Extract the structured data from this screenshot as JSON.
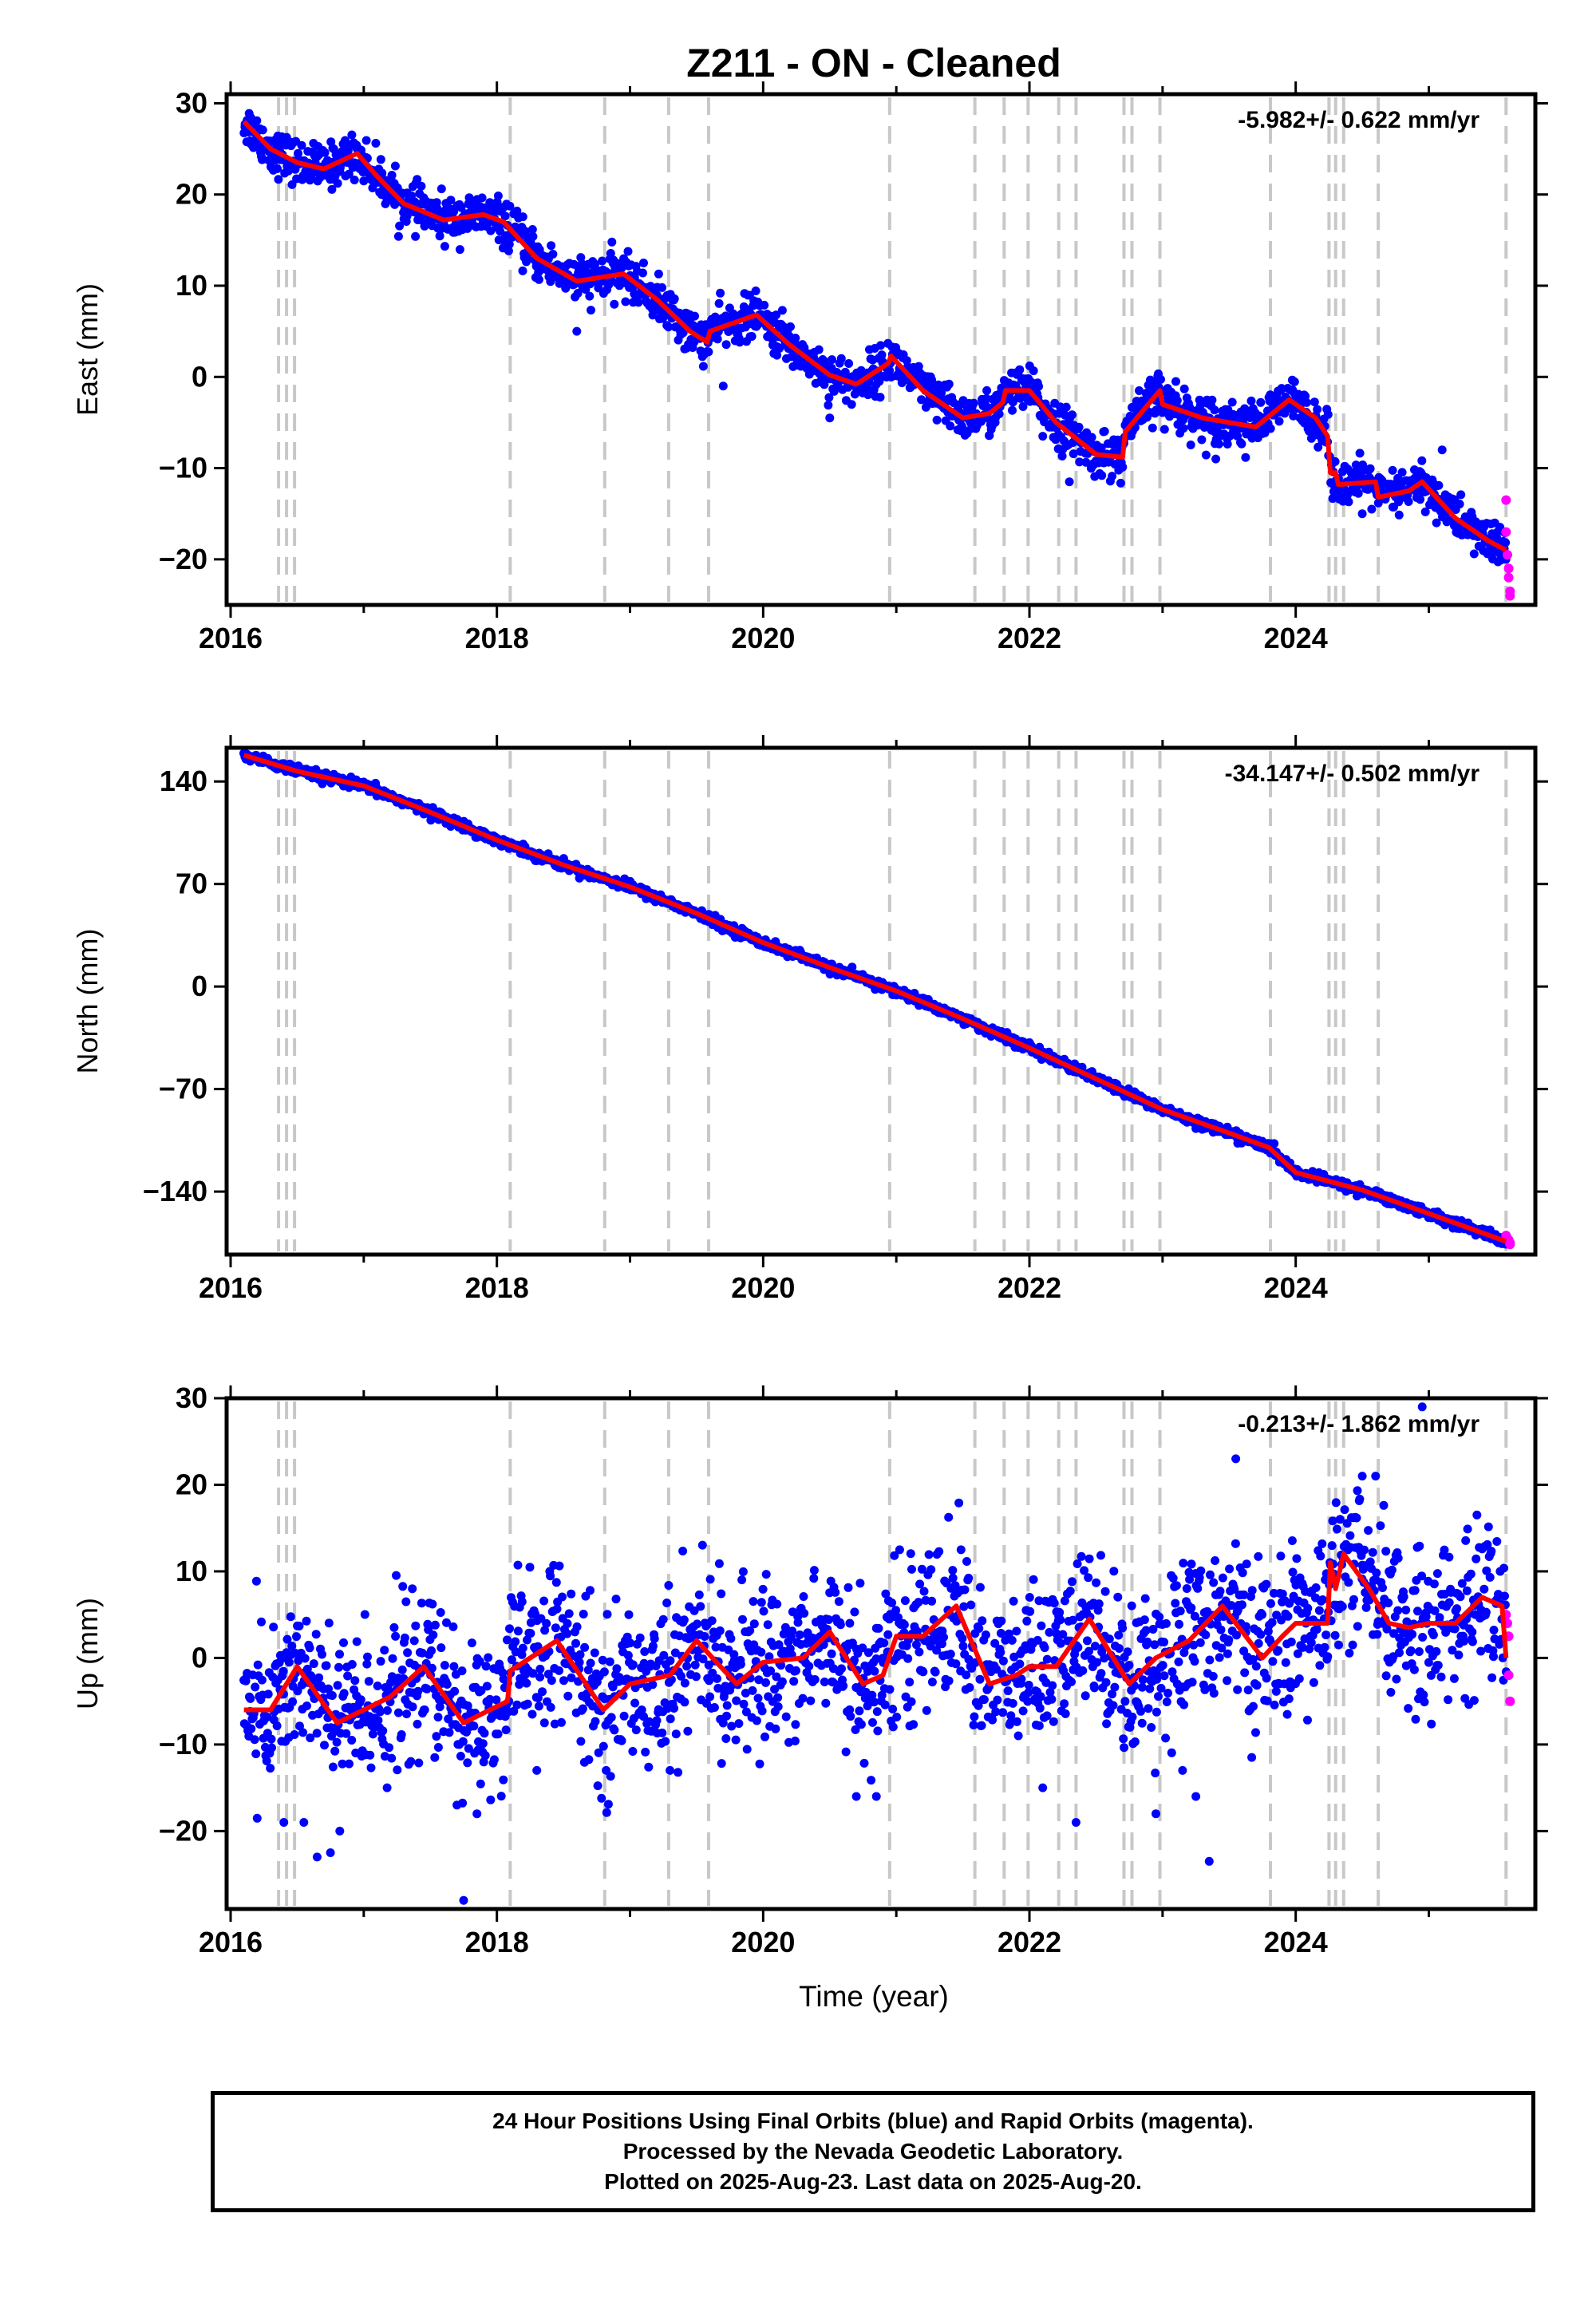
{
  "title": "Z211  - ON - Cleaned",
  "xlabel": "Time (year)",
  "footer": {
    "line1": "24 Hour Positions Using Final Orbits (blue) and Rapid Orbits (magenta).",
    "line2": "Processed by the Nevada Geodetic Laboratory.",
    "line3": "Plotted on 2025-Aug-23. Last data on 2025-Aug-20."
  },
  "colors": {
    "final": "#0000ff",
    "rapid": "#ff00ff",
    "model": "#ff0000",
    "events": "#c8c8c8"
  },
  "chart_data": [
    {
      "type": "scatter",
      "ylabel": "East (mm)",
      "rate": "-5.982+/- 0.622 mm/yr",
      "xlim": [
        2015.97,
        2025.8
      ],
      "ylim": [
        -25,
        31
      ],
      "yticks": [
        30,
        20,
        10,
        0,
        -10,
        -20
      ],
      "ytick_labels": [
        "30",
        "20",
        "10",
        "0",
        "−10",
        "−20"
      ],
      "xticks": [
        2016,
        2018,
        2020,
        2022,
        2024
      ],
      "xtick_labels": [
        "2016",
        "2018",
        "2020",
        "2022",
        "2024"
      ],
      "events": [
        2016.36,
        2016.42,
        2016.48,
        2018.1,
        2018.81,
        2019.29,
        2019.59,
        2020.95,
        2021.59,
        2021.81,
        2021.99,
        2022.22,
        2022.35,
        2022.71,
        2022.77,
        2022.98,
        2023.81,
        2024.25,
        2024.3,
        2024.36,
        2024.62,
        2025.58
      ],
      "model": [
        [
          2016.1,
          28
        ],
        [
          2016.3,
          25
        ],
        [
          2016.5,
          23.5
        ],
        [
          2016.7,
          22.8
        ],
        [
          2016.95,
          24.5
        ],
        [
          2017.1,
          22
        ],
        [
          2017.3,
          19
        ],
        [
          2017.6,
          17.2
        ],
        [
          2017.9,
          17.8
        ],
        [
          2018.05,
          17
        ],
        [
          2018.3,
          13
        ],
        [
          2018.6,
          10.5
        ],
        [
          2018.95,
          11.3
        ],
        [
          2019.2,
          8.5
        ],
        [
          2019.45,
          5
        ],
        [
          2019.58,
          3.8
        ],
        [
          2019.6,
          5
        ],
        [
          2019.95,
          6.8
        ],
        [
          2020.2,
          3.5
        ],
        [
          2020.5,
          0.2
        ],
        [
          2020.7,
          -0.8
        ],
        [
          2020.94,
          1.5
        ],
        [
          2020.96,
          2.3
        ],
        [
          2021.2,
          -1.5
        ],
        [
          2021.5,
          -4.5
        ],
        [
          2021.7,
          -4
        ],
        [
          2021.8,
          -2.8
        ],
        [
          2021.82,
          -1.5
        ],
        [
          2022.0,
          -1.5
        ],
        [
          2022.2,
          -5
        ],
        [
          2022.5,
          -8.5
        ],
        [
          2022.7,
          -8.8
        ],
        [
          2022.72,
          -6
        ],
        [
          2022.98,
          -1.5
        ],
        [
          2023.0,
          -3
        ],
        [
          2023.3,
          -4.5
        ],
        [
          2023.7,
          -5.5
        ],
        [
          2023.95,
          -2.5
        ],
        [
          2024.15,
          -4.5
        ],
        [
          2024.24,
          -6.5
        ],
        [
          2024.26,
          -10.5
        ],
        [
          2024.3,
          -10.5
        ],
        [
          2024.32,
          -11.8
        ],
        [
          2024.6,
          -11.5
        ],
        [
          2024.62,
          -13.2
        ],
        [
          2024.85,
          -12.5
        ],
        [
          2024.95,
          -11.5
        ],
        [
          2025.2,
          -15.5
        ],
        [
          2025.45,
          -18
        ],
        [
          2025.58,
          -19
        ]
      ],
      "rapid": [
        [
          2025.58,
          -13.5
        ],
        [
          2025.58,
          -17.0
        ],
        [
          2025.59,
          -19.5
        ],
        [
          2025.6,
          -21.0
        ],
        [
          2025.6,
          -22.0
        ],
        [
          2025.61,
          -23.5
        ],
        [
          2025.61,
          -24.0
        ]
      ],
      "rapid_start": 2025.58,
      "scatter": 1.2,
      "outliers": [
        [
          2018.6,
          5
        ],
        [
          2019.7,
          -1
        ],
        [
          2020.5,
          -4.5
        ],
        [
          2022.1,
          -6.5
        ],
        [
          2022.3,
          -11.5
        ],
        [
          2023.1,
          -0.5
        ],
        [
          2023.4,
          -9
        ],
        [
          2024.5,
          -15
        ],
        [
          2025.1,
          -8
        ]
      ]
    },
    {
      "type": "scatter",
      "ylabel": "North (mm)",
      "rate": "-34.147+/- 0.502 mm/yr",
      "xlim": [
        2015.97,
        2025.8
      ],
      "ylim": [
        -183,
        163
      ],
      "yticks": [
        140,
        70,
        0,
        -70,
        -140
      ],
      "ytick_labels": [
        "140",
        "70",
        "0",
        "−70",
        "−140"
      ],
      "xticks": [
        2016,
        2018,
        2020,
        2022,
        2024
      ],
      "xtick_labels": [
        "2016",
        "2018",
        "2020",
        "2022",
        "2024"
      ],
      "events": [
        2016.36,
        2016.42,
        2016.48,
        2018.1,
        2018.81,
        2019.29,
        2019.59,
        2020.95,
        2021.59,
        2021.81,
        2021.99,
        2022.22,
        2022.35,
        2022.71,
        2022.77,
        2022.98,
        2023.81,
        2024.25,
        2024.3,
        2024.36,
        2024.62,
        2025.58
      ],
      "model": [
        [
          2016.1,
          158
        ],
        [
          2016.5,
          147
        ],
        [
          2017.0,
          137
        ],
        [
          2017.5,
          119
        ],
        [
          2018.0,
          100
        ],
        [
          2018.5,
          83
        ],
        [
          2019.0,
          68
        ],
        [
          2019.5,
          50
        ],
        [
          2020.0,
          30
        ],
        [
          2020.5,
          13
        ],
        [
          2021.0,
          -3
        ],
        [
          2021.5,
          -22
        ],
        [
          2022.0,
          -42
        ],
        [
          2022.5,
          -63
        ],
        [
          2023.0,
          -84
        ],
        [
          2023.5,
          -100
        ],
        [
          2023.8,
          -110
        ],
        [
          2024.0,
          -127
        ],
        [
          2024.5,
          -139
        ],
        [
          2025.0,
          -155
        ],
        [
          2025.58,
          -174
        ]
      ],
      "rapid": [
        [
          2025.58,
          -170
        ],
        [
          2025.59,
          -172
        ],
        [
          2025.6,
          -173
        ],
        [
          2025.61,
          -175
        ],
        [
          2025.61,
          -176
        ]
      ],
      "rapid_start": 2025.58,
      "scatter": 1.6,
      "outliers": []
    },
    {
      "type": "scatter",
      "ylabel": "Up (mm)",
      "rate": "-0.213+/- 1.862 mm/yr",
      "xlim": [
        2015.97,
        2025.8
      ],
      "ylim": [
        -29,
        30
      ],
      "yticks": [
        30,
        20,
        10,
        0,
        -10,
        -20
      ],
      "ytick_labels": [
        "30",
        "20",
        "10",
        "0",
        "−10",
        "−20"
      ],
      "xticks": [
        2016,
        2018,
        2020,
        2022,
        2024
      ],
      "xtick_labels": [
        "2016",
        "2018",
        "2020",
        "2022",
        "2024"
      ],
      "events": [
        2016.36,
        2016.42,
        2016.48,
        2018.1,
        2018.81,
        2019.29,
        2019.59,
        2020.95,
        2021.59,
        2021.81,
        2021.99,
        2022.22,
        2022.35,
        2022.71,
        2022.77,
        2022.98,
        2023.81,
        2024.25,
        2024.3,
        2024.36,
        2024.62,
        2025.58
      ],
      "model": [
        [
          2016.1,
          -6
        ],
        [
          2016.3,
          -6
        ],
        [
          2016.5,
          -1
        ],
        [
          2016.8,
          -7.5
        ],
        [
          2017.0,
          -6
        ],
        [
          2017.2,
          -4.5
        ],
        [
          2017.45,
          -1
        ],
        [
          2017.75,
          -7.5
        ],
        [
          2018.08,
          -5
        ],
        [
          2018.1,
          -1.5
        ],
        [
          2018.45,
          2
        ],
        [
          2018.8,
          -6
        ],
        [
          2019.0,
          -3
        ],
        [
          2019.3,
          -2
        ],
        [
          2019.5,
          2
        ],
        [
          2019.8,
          -3
        ],
        [
          2020.0,
          -0.5
        ],
        [
          2020.3,
          0
        ],
        [
          2020.5,
          3
        ],
        [
          2020.75,
          -3
        ],
        [
          2020.9,
          -2
        ],
        [
          2021.0,
          2.5
        ],
        [
          2021.2,
          2.5
        ],
        [
          2021.45,
          6
        ],
        [
          2021.7,
          -3
        ],
        [
          2021.9,
          -2
        ],
        [
          2022.0,
          -1
        ],
        [
          2022.2,
          -1
        ],
        [
          2022.45,
          4.5
        ],
        [
          2022.75,
          -3
        ],
        [
          2022.95,
          0
        ],
        [
          2023.2,
          2
        ],
        [
          2023.45,
          6
        ],
        [
          2023.75,
          0
        ],
        [
          2023.9,
          2.5
        ],
        [
          2024.0,
          4
        ],
        [
          2024.24,
          4
        ],
        [
          2024.26,
          11
        ],
        [
          2024.3,
          8
        ],
        [
          2024.36,
          12
        ],
        [
          2024.55,
          8
        ],
        [
          2024.7,
          4
        ],
        [
          2024.85,
          3.5
        ],
        [
          2025.0,
          4
        ],
        [
          2025.2,
          4
        ],
        [
          2025.4,
          7
        ],
        [
          2025.55,
          6
        ],
        [
          2025.58,
          0
        ]
      ],
      "rapid": [
        [
          2025.58,
          5
        ],
        [
          2025.59,
          4
        ],
        [
          2025.6,
          2.5
        ],
        [
          2025.6,
          -2
        ],
        [
          2025.61,
          -5
        ]
      ],
      "rapid_start": 2025.58,
      "scatter": 4.5,
      "outliers": [
        [
          2016.4,
          -19
        ],
        [
          2016.55,
          -19
        ],
        [
          2016.65,
          -23
        ],
        [
          2016.75,
          -22.5
        ],
        [
          2016.82,
          -20
        ],
        [
          2017.7,
          -17
        ],
        [
          2017.75,
          -28
        ],
        [
          2017.85,
          -18
        ],
        [
          2023.35,
          -23.5
        ],
        [
          2023.55,
          23
        ],
        [
          2024.95,
          29
        ],
        [
          2022.1,
          -15
        ],
        [
          2022.35,
          -19
        ],
        [
          2022.95,
          -18
        ],
        [
          2023.15,
          -13
        ],
        [
          2023.25,
          -16
        ],
        [
          2020.7,
          -16
        ],
        [
          2020.85,
          -16
        ],
        [
          2018.3,
          -13
        ],
        [
          2019.3,
          -13
        ],
        [
          2024.6,
          21
        ],
        [
          2024.5,
          21
        ]
      ]
    }
  ]
}
